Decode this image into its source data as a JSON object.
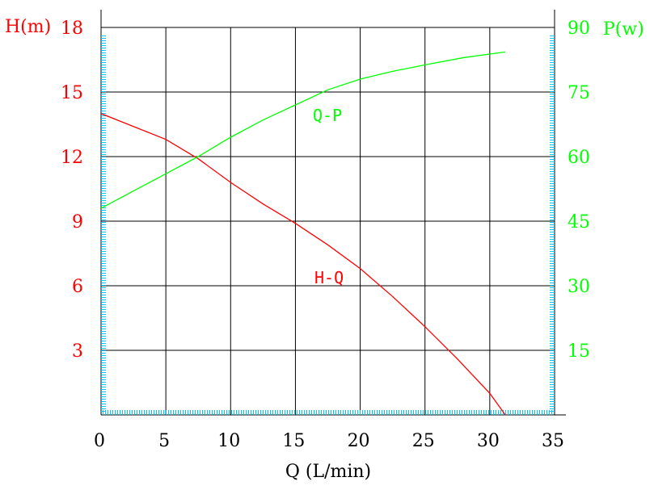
{
  "colors": {
    "left_axis": "#ff0000",
    "right_axis": "#00ff00",
    "grid": "#000000",
    "dots": "#00c8ff"
  },
  "chart_data": {
    "type": "line",
    "xlabel": "Q (L/min)",
    "ylabel_left": "H(m)",
    "ylabel_right": "P(w)",
    "xlim": [
      0,
      35
    ],
    "ylim_left": [
      0,
      18
    ],
    "ylim_right": [
      0,
      90
    ],
    "x_ticks": [
      "0",
      "5",
      "10",
      "15",
      "20",
      "25",
      "30",
      "35"
    ],
    "y_left_ticks": [
      "3",
      "6",
      "9",
      "12",
      "15",
      "18"
    ],
    "y_right_ticks": [
      "15",
      "30",
      "45",
      "60",
      "75",
      "90"
    ],
    "grid": true,
    "series": [
      {
        "name": "H-Q",
        "axis": "left",
        "color": "#ff0000",
        "x": [
          0,
          5,
          7.5,
          10,
          12.5,
          15,
          17.5,
          20,
          22.5,
          25,
          27.5,
          30,
          31.2
        ],
        "y": [
          14.0,
          12.8,
          11.9,
          10.8,
          9.8,
          8.9,
          7.9,
          6.8,
          5.5,
          4.1,
          2.6,
          1.0,
          0
        ]
      },
      {
        "name": "Q-P",
        "axis": "right",
        "color": "#00ff00",
        "x": [
          0,
          5,
          7.5,
          10,
          12.5,
          15,
          17.5,
          20,
          22.5,
          25,
          28,
          31.2
        ],
        "y": [
          48,
          56,
          60,
          64.5,
          68.5,
          72,
          75.5,
          78,
          79.8,
          81.3,
          83,
          84.3
        ]
      }
    ]
  }
}
